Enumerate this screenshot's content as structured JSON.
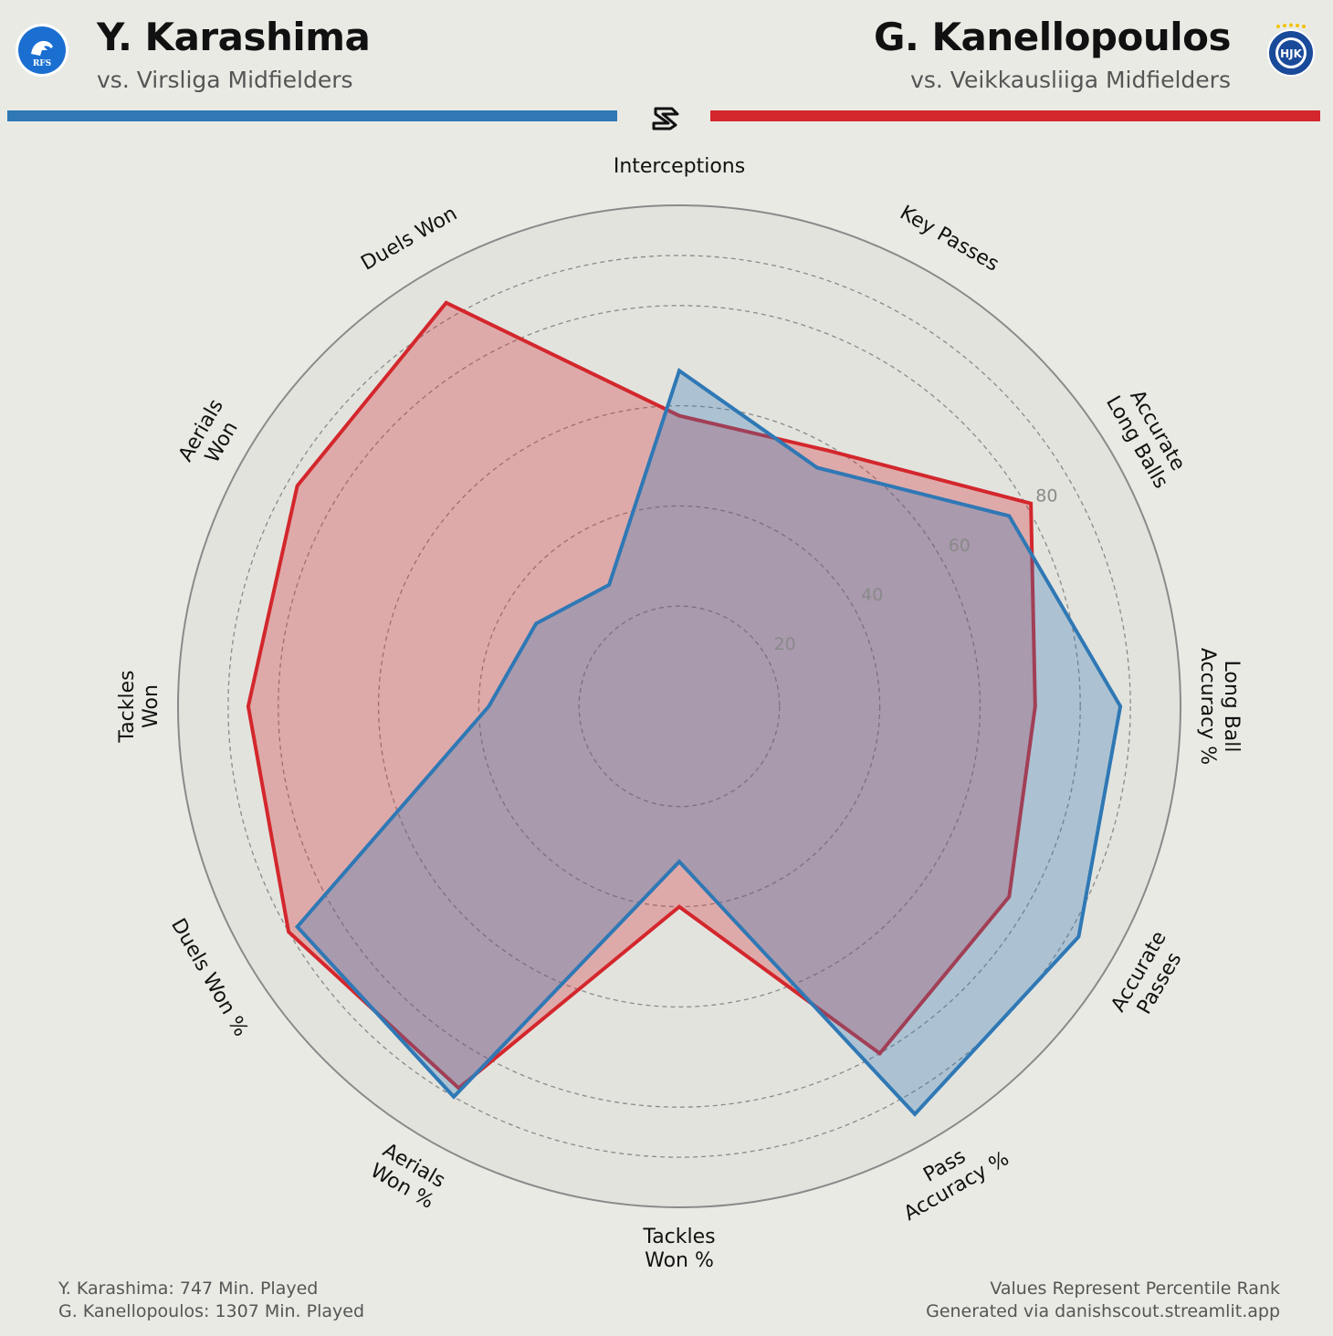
{
  "colors": {
    "background": "#eaeae5",
    "blue": "#2f78b5",
    "red": "#d3272d",
    "ring": "#8a8a8a",
    "tick_label": "#8a8a8a",
    "club_left": "#1a6fd1",
    "club_right": "#1a4a9a"
  },
  "header": {
    "left": {
      "name": "Y. Karashima",
      "subtitle": "vs. Virsliga Midfielders",
      "crest_text": "RFS",
      "crest_icon": "lion-crest-icon"
    },
    "right": {
      "name": "G. Kanellopoulos",
      "subtitle": "vs. Veikkausliiga Midfielders",
      "crest_text": "HJK",
      "crest_icon": "ball-crest-icon"
    },
    "center_icon": "ds-logo-icon"
  },
  "chart_data": {
    "type": "radar",
    "metrics": [
      [
        "Interceptions"
      ],
      [
        "Key Passes"
      ],
      [
        "Accurate",
        "Long Balls"
      ],
      [
        "Long Ball",
        "Accuracy %"
      ],
      [
        "Accurate",
        "Passes"
      ],
      [
        "Pass",
        "Accuracy %"
      ],
      [
        "Tackles",
        "Won %"
      ],
      [
        "Aerials",
        "Won %"
      ],
      [
        "Duels Won %"
      ],
      [
        "Tackles",
        "Won"
      ],
      [
        "Aerials",
        "Won"
      ],
      [
        "Duels Won"
      ]
    ],
    "rlim": [
      0,
      100
    ],
    "rticks": [
      20,
      40,
      60,
      80
    ],
    "grid": true,
    "series": [
      {
        "name": "Y. Karashima",
        "color": "#2f78b5",
        "values": [
          67,
          55,
          76,
          88,
          92,
          94,
          31,
          90,
          88,
          38,
          33,
          28
        ]
      },
      {
        "name": "G. Kanellopoulos",
        "color": "#d3272d",
        "values": [
          58,
          59,
          81,
          71,
          76,
          80,
          40,
          88,
          90,
          86,
          88,
          93
        ]
      }
    ]
  },
  "footer": {
    "left_line1": "Y. Karashima: 747 Min. Played",
    "left_line2": "G. Kanellopoulos: 1307 Min. Played",
    "right_line1": "Values Represent Percentile Rank",
    "right_line2": "Generated via danishscout.streamlit.app"
  }
}
